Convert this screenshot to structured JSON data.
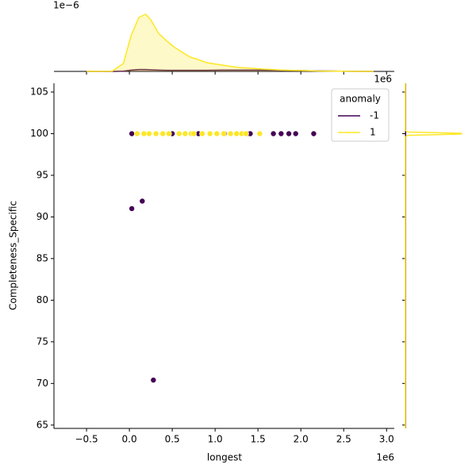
{
  "chart_data": {
    "type": "scatter",
    "x_label": "longest",
    "y_label": "Completeness_Specific",
    "x_offset_label": "1e6",
    "xlim": [
      -880000,
      3090000
    ],
    "ylim": [
      64.6,
      106.05
    ],
    "xticks": [
      {
        "value": -500000,
        "label": "−0.5"
      },
      {
        "value": 0,
        "label": "0.0"
      },
      {
        "value": 500000,
        "label": "0.5"
      },
      {
        "value": 1000000,
        "label": "1.0"
      },
      {
        "value": 1500000,
        "label": "1.5"
      },
      {
        "value": 2000000,
        "label": "2.0"
      },
      {
        "value": 2500000,
        "label": "2.5"
      },
      {
        "value": 3000000,
        "label": "3.0"
      }
    ],
    "yticks": [
      65,
      70,
      75,
      80,
      85,
      90,
      95,
      100,
      105
    ],
    "legend_title": "anomaly",
    "legend_position": "upper right",
    "series": [
      {
        "name": "-1",
        "color": "#440154",
        "x": [
          28000,
          500000,
          806000,
          1110000,
          1390000,
          1410000,
          1680000,
          1770000,
          1860000,
          1940000,
          2150000,
          28000,
          150000,
          280000
        ],
        "y": [
          100,
          100,
          100,
          100,
          100,
          100,
          100,
          100,
          100,
          100,
          100,
          91,
          91.9,
          70.4
        ]
      },
      {
        "name": "1",
        "color": "#fde725",
        "x": [
          90000,
          170000,
          230000,
          310000,
          390000,
          460000,
          580000,
          650000,
          720000,
          750000,
          850000,
          940000,
          1020000,
          1100000,
          1180000,
          1250000,
          1310000,
          1360000,
          1520000
        ],
        "y": [
          100,
          100,
          100,
          100,
          100,
          100,
          100,
          100,
          100,
          100,
          100,
          100,
          100,
          100,
          100,
          100,
          100,
          100,
          100
        ]
      }
    ],
    "top_kde": {
      "offset_label": "1e−6",
      "ylim": [
        0,
        2.55e-06
      ],
      "x": [
        -500000,
        -200000,
        -70000,
        20000,
        110000,
        190000,
        250000,
        340000,
        440000,
        530000,
        620000,
        710000,
        800000,
        900000,
        1080000,
        1270000,
        1550000,
        1820000,
        2200000,
        2570000,
        2850000
      ],
      "densities": [
        [
          0,
          0,
          1e-08,
          5e-08,
          7e-08,
          7e-08,
          6e-08,
          5e-08,
          4e-08,
          4e-08,
          4e-08,
          4e-08,
          4e-08,
          4e-08,
          5e-08,
          5e-08,
          5e-08,
          4e-08,
          2e-08,
          5e-09,
          0
        ],
        [
          0,
          6e-09,
          3e-07,
          1.35e-06,
          2.04e-06,
          2.16e-06,
          1.95e-06,
          1.44e-06,
          1.14e-06,
          9e-07,
          7.2e-07,
          5.4e-07,
          4.5e-07,
          3.3e-07,
          2.4e-07,
          1.5e-07,
          9e-08,
          4.5e-08,
          1.5e-08,
          3e-09,
          0
        ]
      ],
      "fill": true
    },
    "right_kde": {
      "offset_label": "1e6",
      "xlim": [
        0,
        0.3
      ],
      "y": [
        64.6,
        99.6,
        99.8,
        99.95,
        100,
        100.05,
        100.2,
        100.4,
        106.05
      ],
      "densities": [
        [
          0.001,
          0.001,
          0.001,
          0.001,
          0.001,
          0.001,
          0.001,
          0.001,
          0.001
        ],
        [
          0,
          0,
          0.01,
          0.24,
          0.25,
          0.24,
          0.01,
          0,
          0
        ]
      ]
    }
  }
}
